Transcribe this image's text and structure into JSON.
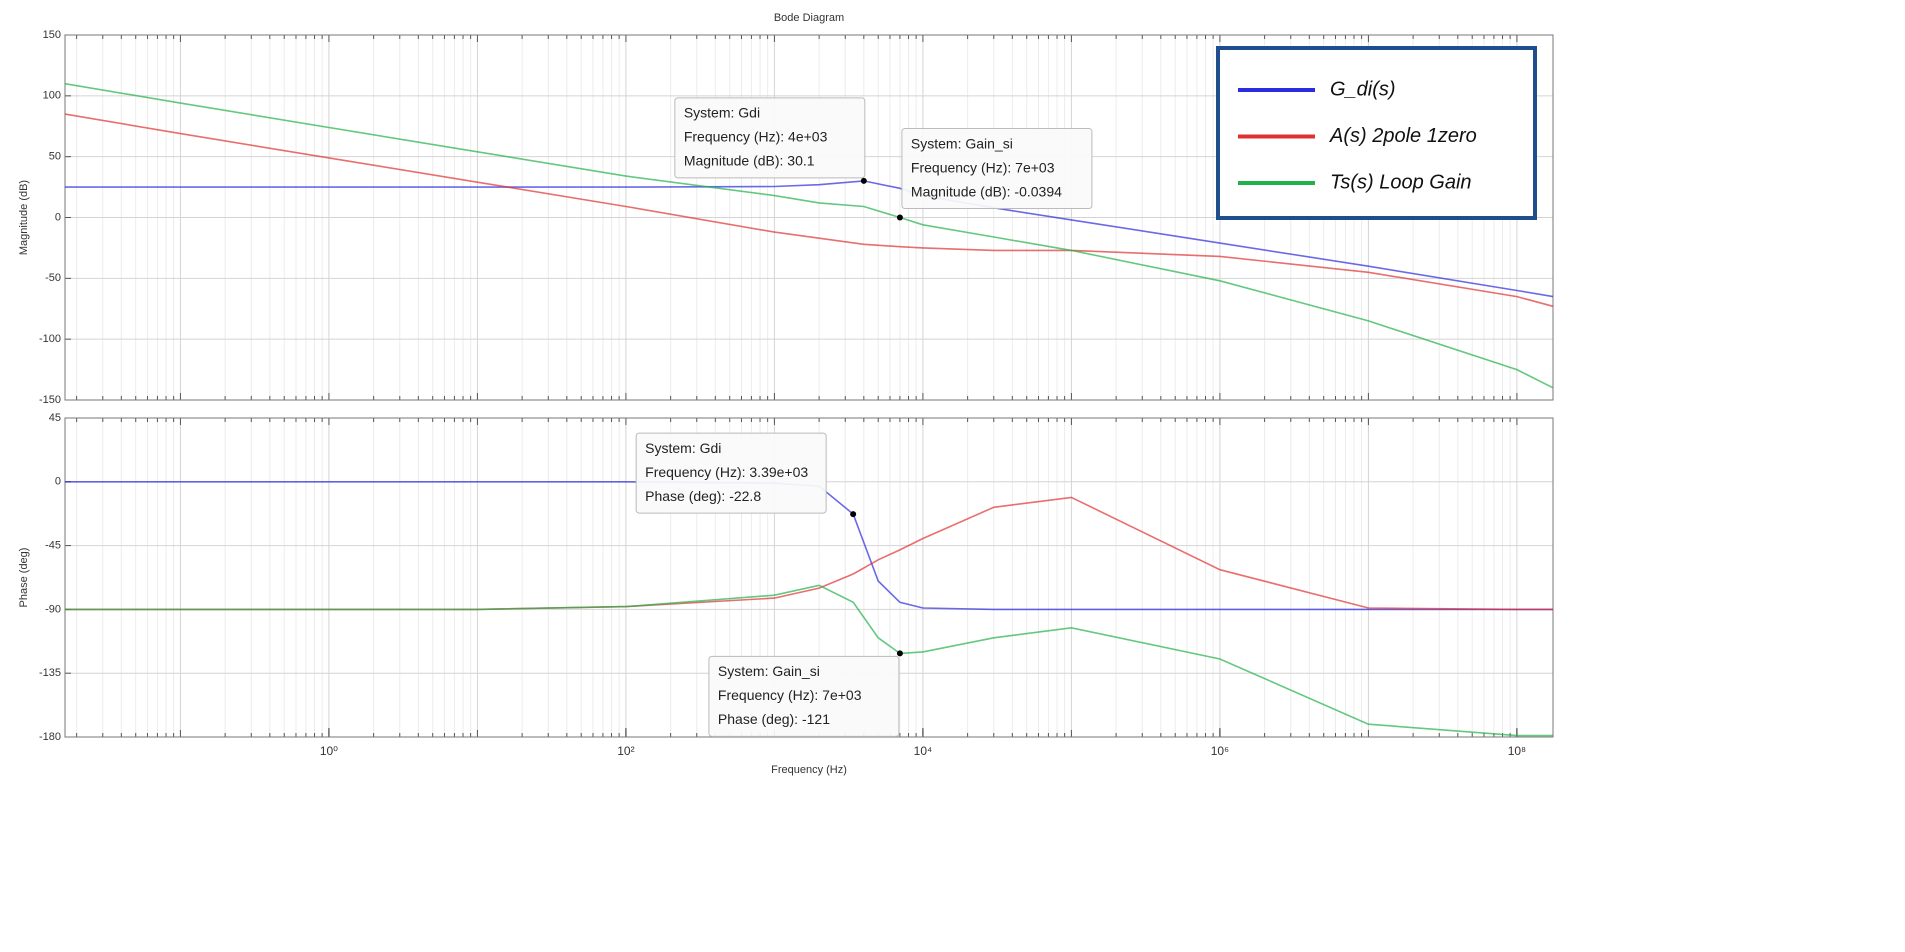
{
  "chart_data": [
    {
      "type": "line",
      "title": "Bode Diagram",
      "ylabel": "Magnitude (dB)",
      "xscale": "log",
      "grid": true,
      "xlim": [
        0.0167,
        175000000
      ],
      "ylim": [
        -150,
        150
      ],
      "yticks": [
        150,
        100,
        50,
        0,
        -50,
        -100,
        -150
      ],
      "legend": "upper right",
      "x": [
        0.0167,
        0.1,
        1,
        10,
        100,
        1000,
        2000,
        4000,
        7000,
        10000,
        30000,
        100000,
        1000000,
        10000000,
        100000000,
        175000000
      ],
      "series": [
        {
          "name": "G_di(s)",
          "color": "#2b2be0",
          "values": [
            25,
            25,
            25,
            25,
            25,
            25.5,
            27,
            30.1,
            24,
            18,
            8,
            -2,
            -21,
            -40,
            -60,
            -65
          ]
        },
        {
          "name": "A(s)  2pole 1zero",
          "color": "#e03030",
          "values": [
            85,
            69,
            49,
            29,
            9,
            -12,
            -17,
            -22,
            -24,
            -25,
            -27,
            -27,
            -32,
            -45,
            -65,
            -73
          ]
        },
        {
          "name": "Ts(s)  Loop Gain",
          "color": "#22b04a",
          "values": [
            110,
            94,
            74,
            54,
            34,
            18,
            12,
            9,
            -0.0394,
            -6,
            -16,
            -27,
            -52,
            -85,
            -125,
            -140
          ]
        }
      ],
      "annotations": [
        {
          "x": 4000,
          "y": 30.1,
          "lines": [
            "System: Gdi",
            "Frequency (Hz): 4e+03",
            "Magnitude (dB): 30.1"
          ]
        },
        {
          "x": 7000,
          "y": -0.0394,
          "lines": [
            "System: Gain_si",
            "Frequency (Hz): 7e+03",
            "Magnitude (dB): -0.0394"
          ]
        }
      ]
    },
    {
      "type": "line",
      "ylabel": "Phase (deg)",
      "xlabel": "Frequency  (Hz)",
      "xscale": "log",
      "grid": true,
      "xlim": [
        0.0167,
        175000000
      ],
      "ylim": [
        -180,
        45
      ],
      "yticks": [
        45,
        0,
        -45,
        -90,
        -135,
        -180
      ],
      "xticks": [
        {
          "value": 1,
          "label": "10⁰"
        },
        {
          "value": 100,
          "label": "10²"
        },
        {
          "value": 10000,
          "label": "10⁴"
        },
        {
          "value": 1000000,
          "label": "10⁶"
        },
        {
          "value": 100000000,
          "label": "10⁸"
        }
      ],
      "x": [
        0.0167,
        0.1,
        1,
        10,
        100,
        1000,
        2000,
        3390,
        5000,
        7000,
        10000,
        30000,
        100000,
        1000000,
        10000000,
        100000000,
        175000000
      ],
      "series": [
        {
          "color": "#2b2be0",
          "values": [
            0,
            0,
            0,
            0,
            0,
            -1,
            -3,
            -22.8,
            -70,
            -85,
            -89,
            -90,
            -90,
            -90,
            -90,
            -90,
            -90
          ]
        },
        {
          "color": "#e03030",
          "values": [
            -90,
            -90,
            -90,
            -90,
            -88,
            -82,
            -75,
            -65,
            -55,
            -48,
            -40,
            -18,
            -11,
            -62,
            -89,
            -90,
            -90
          ]
        },
        {
          "color": "#22b04a",
          "values": [
            -90,
            -90,
            -90,
            -90,
            -88,
            -80,
            -73,
            -85,
            -110,
            -121,
            -120,
            -110,
            -103,
            -125,
            -171,
            -179,
            -179
          ]
        }
      ],
      "annotations": [
        {
          "x": 3390,
          "y": -22.8,
          "lines": [
            "System: Gdi",
            "Frequency (Hz): 3.39e+03",
            "Phase (deg): -22.8"
          ]
        },
        {
          "x": 7000,
          "y": -121,
          "lines": [
            "System: Gain_si",
            "Frequency (Hz): 7e+03",
            "Phase (deg): -121"
          ]
        }
      ]
    }
  ]
}
